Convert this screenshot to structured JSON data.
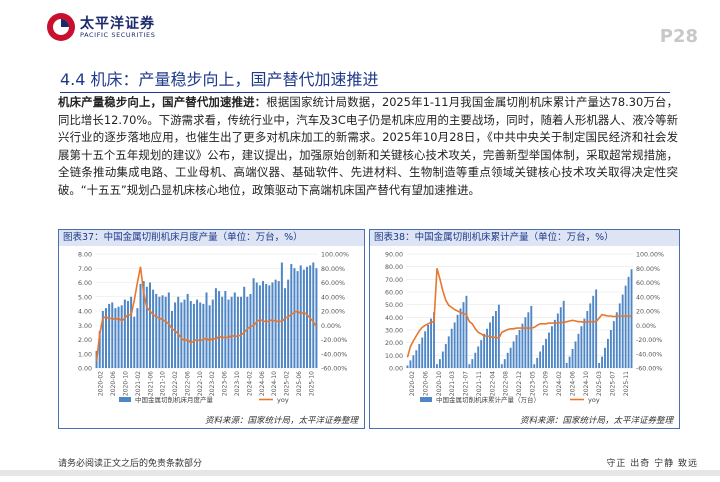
{
  "header": {
    "brand_cn": "太平洋证券",
    "brand_en": "PACIFIC SECURITIES",
    "page_number": "P28"
  },
  "section_title": "4.4  机床：产量稳步向上，国产替代加速推进",
  "paragraph": {
    "lead": "机床产量稳步向上，国产替代加速推进：",
    "body": "根据国家统计局数据，2025年1-11月我国金属切削机床累计产量达78.30万台，同比增长12.70%。下游需求看，传统行业中，汽车及3C电子仍是机床应用的主要战场，同时，随着人形机器人、液冷等新兴行业的逐步落地应用，也催生出了更多对机床加工的新需求。2025年10月28日，《中共中央关于制定国民经济和社会发展第十五个五年规划的建议》公布，建议提出，加强原始创新和关键核心技术攻关，完善新型举国体制，采取超常规措施，全链条推动集成电路、工业母机、高端仪器、基础软件、先进材料、生物制造等重点领域关键核心技术攻关取得决定性突破。“十五五”规划凸显机床核心地位，政策驱动下高端机床国产替代有望加速推进。"
  },
  "figures": [
    {
      "title": "图表37：中国金属切削机床月度产量（单位：万台，%）",
      "source": "资料来源：国家统计局，太平洋证券整理"
    },
    {
      "title": "图表38：中国金属切削机床累计产量（单位：万台，%）",
      "source": "资料来源：国家统计局，太平洋证券整理"
    }
  ],
  "chart_data": [
    {
      "type": "bar",
      "title": "图表37：中国金属切削机床月度产量（单位：万台，%）",
      "series": [
        {
          "name": "中国金属切削机床月度产量",
          "type": "bar",
          "axis": "left",
          "values": [
            1.2,
            2.6,
            4.0,
            4.2,
            4.5,
            4.6,
            4.2,
            4.3,
            4.4,
            4.8,
            4.7,
            5.0,
            3.6,
            4.2,
            5.9,
            6.1,
            5.7,
            6.0,
            5.5,
            5.2,
            5.0,
            5.1,
            5.0,
            5.3,
            4.0,
            4.6,
            5.0,
            4.6,
            4.8,
            5.2,
            4.7,
            4.5,
            4.8,
            4.6,
            4.5,
            5.3,
            4.4,
            4.8,
            5.6,
            5.4,
            5.0,
            5.4,
            4.8,
            5.0,
            5.3,
            5.0,
            5.0,
            5.7,
            5.0,
            5.2,
            6.3,
            6.0,
            5.8,
            6.1,
            5.9,
            5.8,
            6.0,
            6.2,
            6.1,
            7.4,
            5.6,
            6.2,
            7.3,
            7.0,
            6.8,
            7.2,
            6.9,
            7.1,
            7.2,
            7.4,
            7.0
          ]
        },
        {
          "name": "yoy",
          "type": "line",
          "axis": "right",
          "values": [
            -50,
            -12,
            10,
            12,
            9,
            10,
            8,
            10,
            6,
            10,
            15,
            14,
            35,
            60,
            82,
            45,
            25,
            20,
            15,
            12,
            10,
            8,
            5,
            2,
            -5,
            -8,
            -12,
            -18,
            -22,
            -20,
            -25,
            -22,
            -20,
            -22,
            -20,
            -18,
            -22,
            -18,
            -20,
            -15,
            -18,
            -16,
            -18,
            -14,
            -16,
            -15,
            -14,
            -10,
            -5,
            -2,
            0,
            5,
            8,
            6,
            5,
            6,
            8,
            5,
            6,
            5,
            10,
            12,
            15,
            18,
            20,
            16,
            18,
            15,
            10,
            5,
            -2
          ]
        }
      ],
      "x_tick_labels": [
        "2020-02",
        "2020-06",
        "2020-10",
        "2021-02",
        "2021-06",
        "2021-10",
        "2022-02",
        "2022-06",
        "2022-10",
        "2023-02",
        "2023-06",
        "2023-10",
        "2024-02",
        "2024-06",
        "2024-10",
        "2025-02",
        "2025-06",
        "2025-10"
      ],
      "y_left": {
        "min": 0,
        "max": 8,
        "ticks": [
          "0.00",
          "1.00",
          "2.00",
          "3.00",
          "4.00",
          "5.00",
          "6.00",
          "7.00",
          "8.00"
        ]
      },
      "y_right": {
        "min": -60,
        "max": 100,
        "ticks": [
          "-60.00%",
          "-40.00%",
          "-20.00%",
          "0.00%",
          "20.00%",
          "40.00%",
          "60.00%",
          "80.00%",
          "100.00%"
        ]
      },
      "legend": [
        "中国金属切削机床月度产量",
        "yoy"
      ],
      "legend_position": "bottom",
      "colors": {
        "bar": "#4f86c6",
        "line": "#e8772e"
      }
    },
    {
      "type": "bar",
      "title": "图表38：中国金属切削机床累计产量（单位：万台，%）",
      "series": [
        {
          "name": "中国金属切削机床累计产量（万台）",
          "type": "bar",
          "axis": "left",
          "values": [
            2,
            6,
            10,
            14,
            19,
            24,
            29,
            34,
            39,
            44,
            3,
            7,
            13,
            19,
            25,
            31,
            36,
            42,
            47,
            52,
            57,
            3,
            7,
            12,
            17,
            22,
            27,
            31,
            36,
            41,
            45,
            50,
            3,
            7,
            12,
            16,
            21,
            26,
            30,
            35,
            40,
            44,
            49,
            3,
            8,
            13,
            18,
            23,
            28,
            33,
            38,
            43,
            48,
            53,
            4,
            9,
            15,
            21,
            27,
            33,
            39,
            45,
            51,
            57,
            62,
            4,
            9,
            16,
            23,
            30,
            37,
            44,
            51,
            58,
            65,
            72,
            78
          ]
        },
        {
          "name": "yoy",
          "type": "line",
          "axis": "right",
          "values": [
            -45,
            -30,
            -22,
            -15,
            -8,
            -3,
            0,
            2,
            4,
            5,
            80,
            65,
            48,
            35,
            28,
            25,
            22,
            20,
            18,
            16,
            15,
            5,
            2,
            -5,
            -10,
            -12,
            -15,
            -15,
            -16,
            -17,
            -17,
            -18,
            -10,
            -8,
            -6,
            -5,
            -5,
            -4,
            -4,
            -4,
            -4,
            -4,
            -4,
            -3,
            0,
            2,
            2,
            2,
            3,
            3,
            3,
            3,
            4,
            4,
            5,
            6,
            7,
            6,
            5,
            5,
            4,
            5,
            5,
            5,
            5,
            10,
            15,
            14,
            13,
            13,
            12,
            13,
            13,
            13,
            13,
            13,
            12.7
          ]
        }
      ],
      "x_tick_labels": [
        "2020-02",
        "2020-06",
        "2020-10",
        "2021-03",
        "2021-07",
        "2021-11",
        "2022-04",
        "2022-08",
        "2022-12",
        "2023-05",
        "2023-09",
        "2024-02",
        "2024-06",
        "2024-10",
        "2025-03",
        "2025-07",
        "2025-11"
      ],
      "y_left": {
        "min": 0,
        "max": 90,
        "ticks": [
          "0.00",
          "10.00",
          "20.00",
          "30.00",
          "40.00",
          "50.00",
          "60.00",
          "70.00",
          "80.00",
          "90.00"
        ]
      },
      "y_right": {
        "min": -60,
        "max": 100,
        "ticks": [
          "-60.00%",
          "-40.00%",
          "-20.00%",
          "0.00%",
          "20.00%",
          "40.00%",
          "60.00%",
          "80.00%",
          "100.00%"
        ]
      },
      "legend": [
        "中国金属切削机床累计产量（万台）",
        "yoy"
      ],
      "legend_position": "bottom",
      "colors": {
        "bar": "#4f86c6",
        "line": "#e8772e"
      }
    }
  ],
  "footer": {
    "disclaimer": "请务必阅读正文之后的免责条款部分",
    "slogan": "守正  出奇  宁静  致远"
  }
}
